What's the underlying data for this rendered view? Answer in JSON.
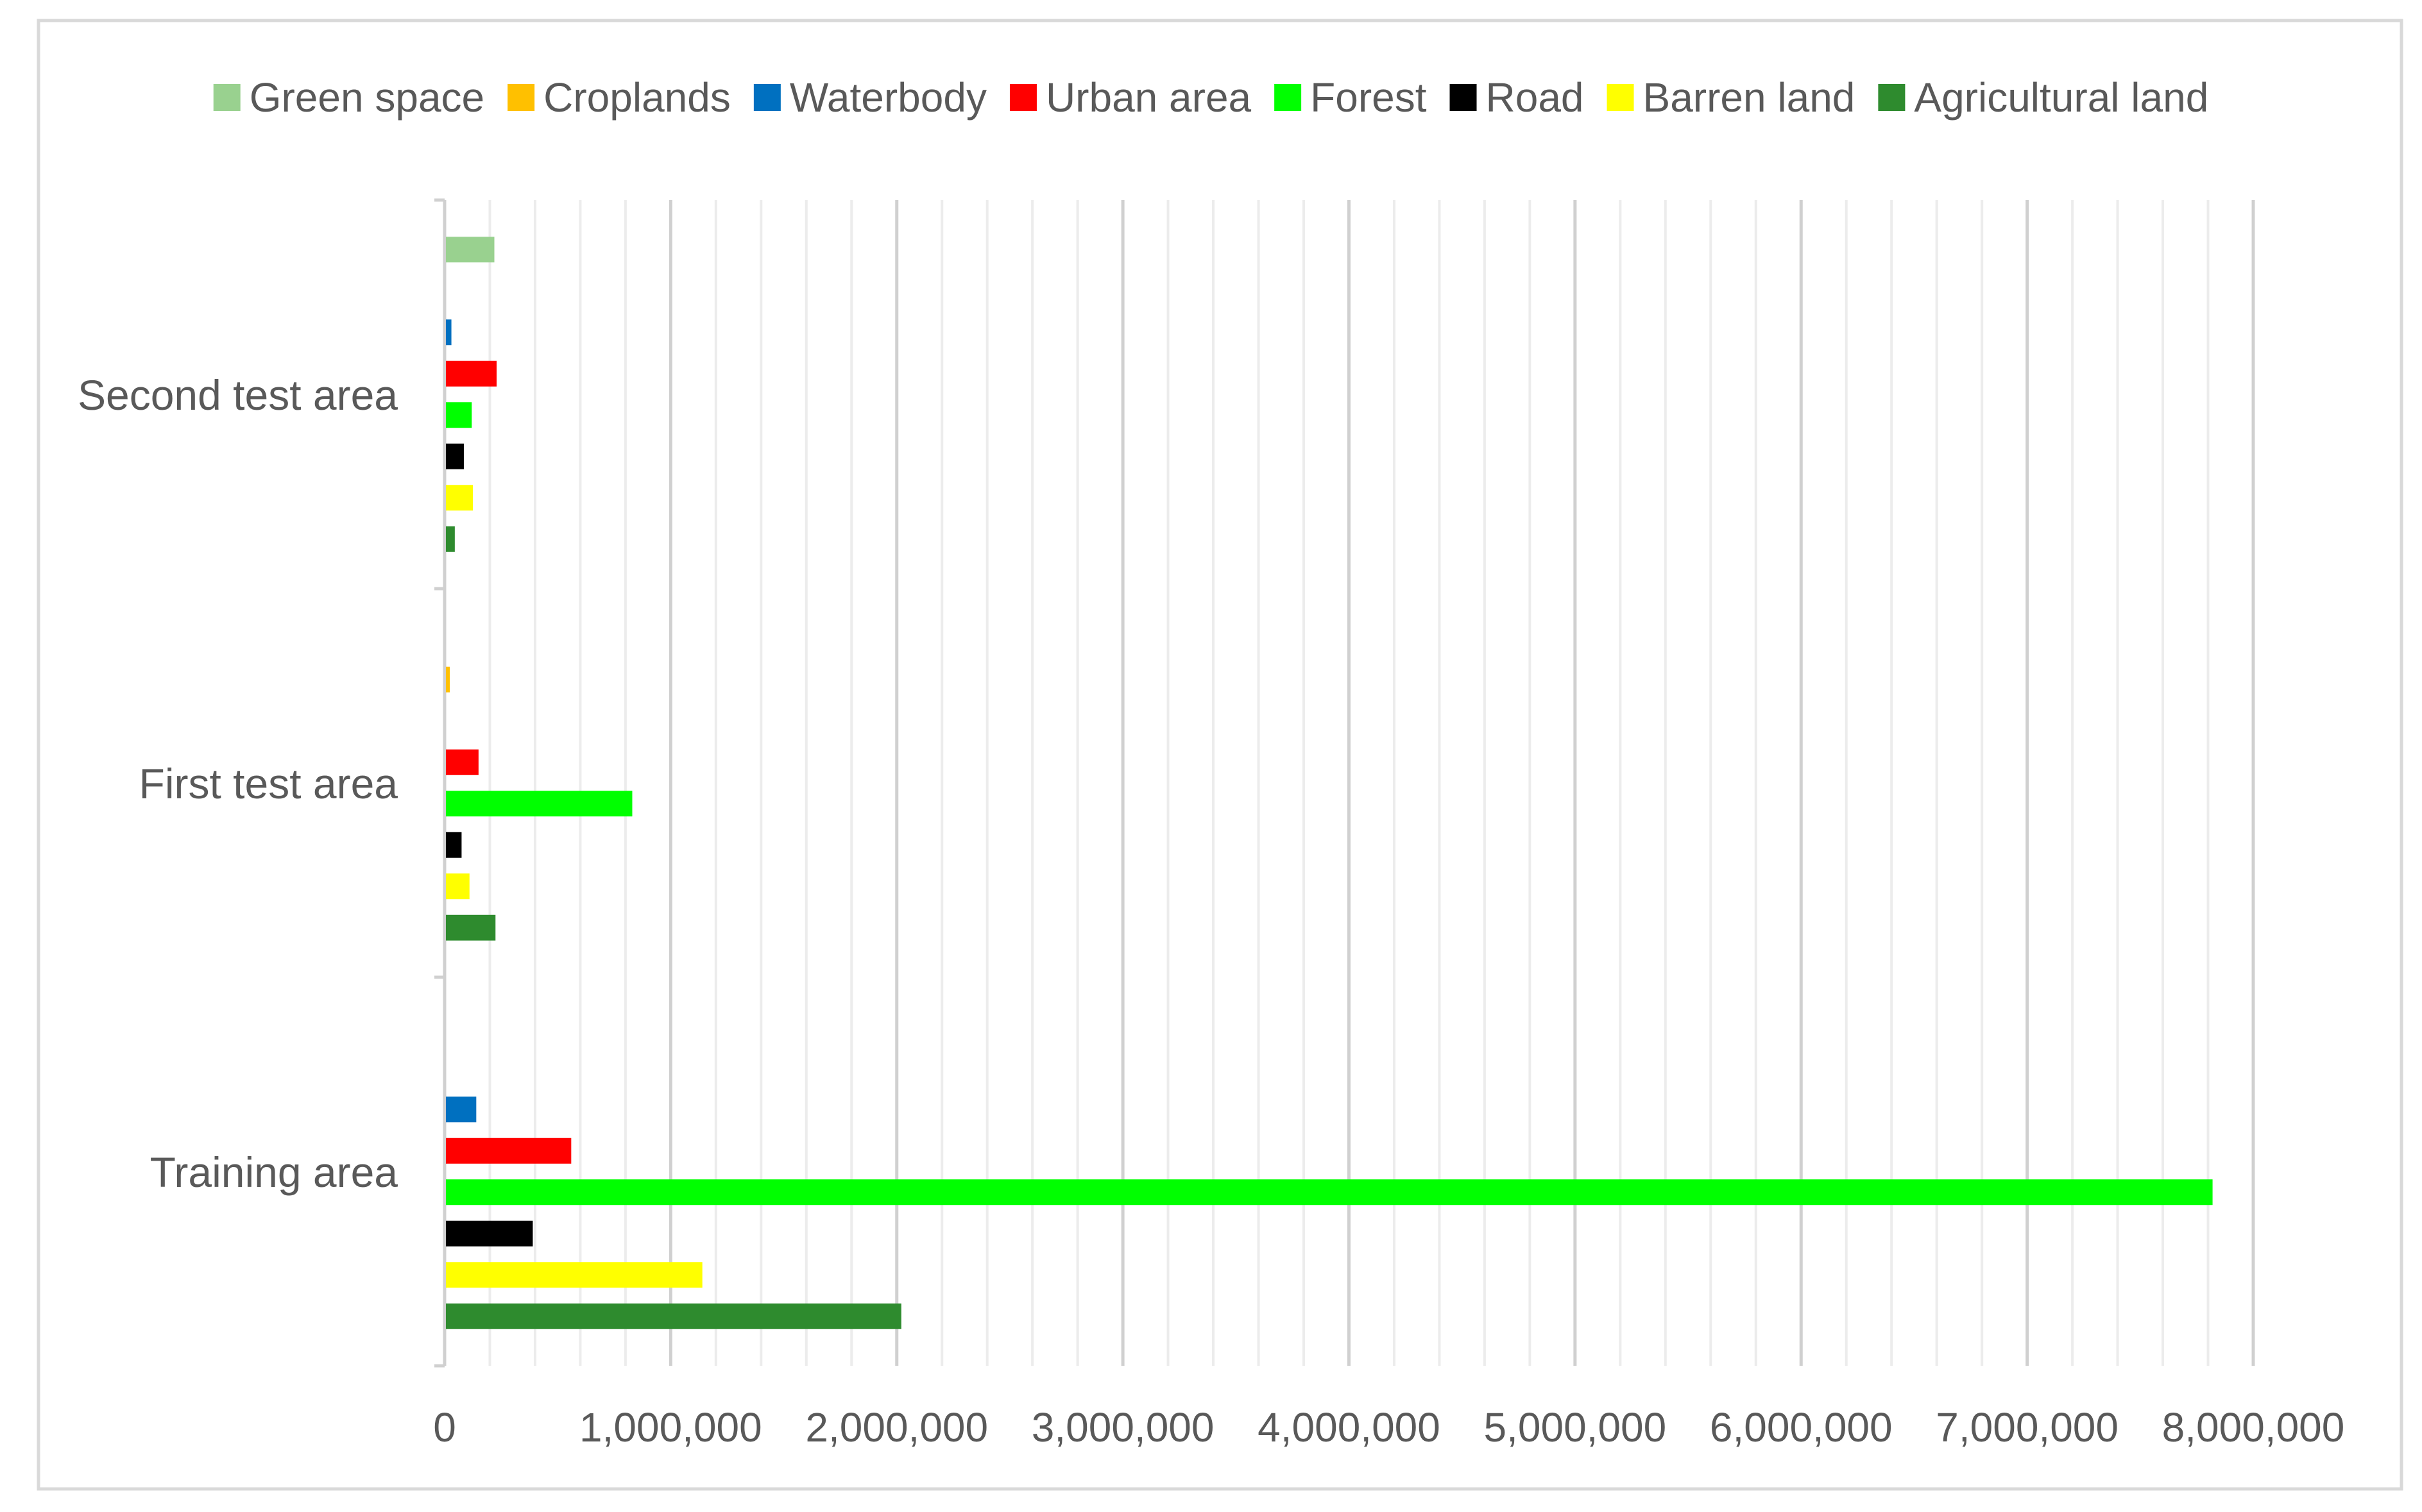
{
  "chart_data": {
    "type": "bar",
    "orientation": "horizontal",
    "title": "",
    "xlabel": "",
    "ylabel": "",
    "categories": [
      "Training area",
      "First test area",
      "Second test area"
    ],
    "xlim": [
      0,
      8000000
    ],
    "major_ticks": [
      0,
      1000000,
      2000000,
      3000000,
      4000000,
      5000000,
      6000000,
      7000000,
      8000000
    ],
    "tick_labels": [
      "0",
      "1,000,000",
      "2,000,000",
      "3,000,000",
      "4,000,000",
      "5,000,000",
      "6,000,000",
      "7,000,000",
      "8,000,000"
    ],
    "grid": true,
    "legend_position": "top",
    "series": [
      {
        "name": "Green space",
        "color": "#99d18f",
        "values": [
          0,
          0,
          220000
        ]
      },
      {
        "name": "Croplands",
        "color": "#ffc000",
        "values": [
          0,
          20000,
          0
        ]
      },
      {
        "name": "Waterbody",
        "color": "#0070c0",
        "values": [
          140000,
          0,
          30000
        ]
      },
      {
        "name": "Urban area",
        "color": "#ff0000",
        "values": [
          560000,
          150000,
          230000
        ]
      },
      {
        "name": "Forest",
        "color": "#00ff00",
        "values": [
          7820000,
          830000,
          120000
        ]
      },
      {
        "name": "Road",
        "color": "#000000",
        "values": [
          390000,
          75000,
          85000
        ]
      },
      {
        "name": "Barren land",
        "color": "#ffff00",
        "values": [
          1140000,
          110000,
          125000
        ]
      },
      {
        "name": "Agricultural land",
        "color": "#2e8b2e",
        "values": [
          2020000,
          225000,
          45000
        ]
      }
    ]
  }
}
